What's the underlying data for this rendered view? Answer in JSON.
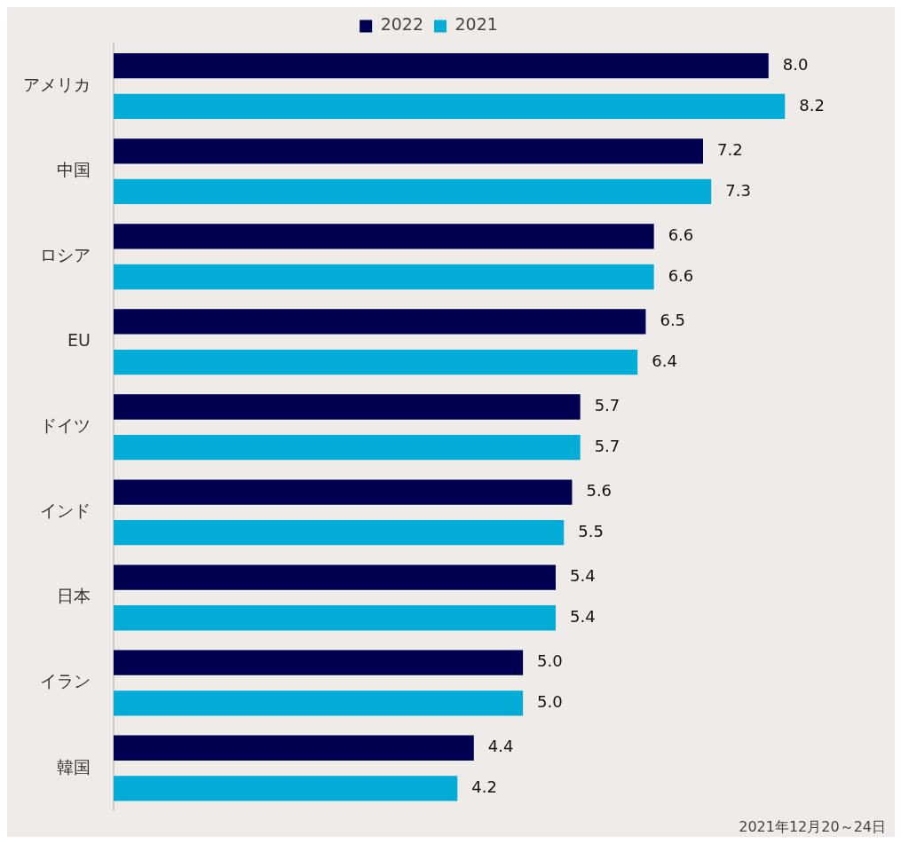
{
  "chart_data": {
    "type": "bar",
    "orientation": "horizontal",
    "categories": [
      "アメリカ",
      "中国",
      "ロシア",
      "EU",
      "ドイツ",
      "インド",
      "日本",
      "イラン",
      "韓国"
    ],
    "series": [
      {
        "name": "2022",
        "color": "#000052",
        "values": [
          8.0,
          7.2,
          6.6,
          6.5,
          5.7,
          5.6,
          5.4,
          5.0,
          4.4
        ],
        "value_labels": [
          "8.0",
          "7.2",
          "6.6",
          "6.5",
          "5.7",
          "5.6",
          "5.4",
          "5.0",
          "4.4"
        ]
      },
      {
        "name": "2021",
        "color": "#04acd8",
        "values": [
          8.2,
          7.3,
          6.6,
          6.4,
          5.7,
          5.5,
          5.4,
          5.0,
          4.2
        ],
        "value_labels": [
          "8.2",
          "7.3",
          "6.6",
          "6.4",
          "5.7",
          "5.5",
          "5.4",
          "5.0",
          "4.2"
        ]
      }
    ],
    "legend": "top",
    "tick_labels": "y",
    "annotations": [
      "2021年12月20～24日"
    ]
  }
}
